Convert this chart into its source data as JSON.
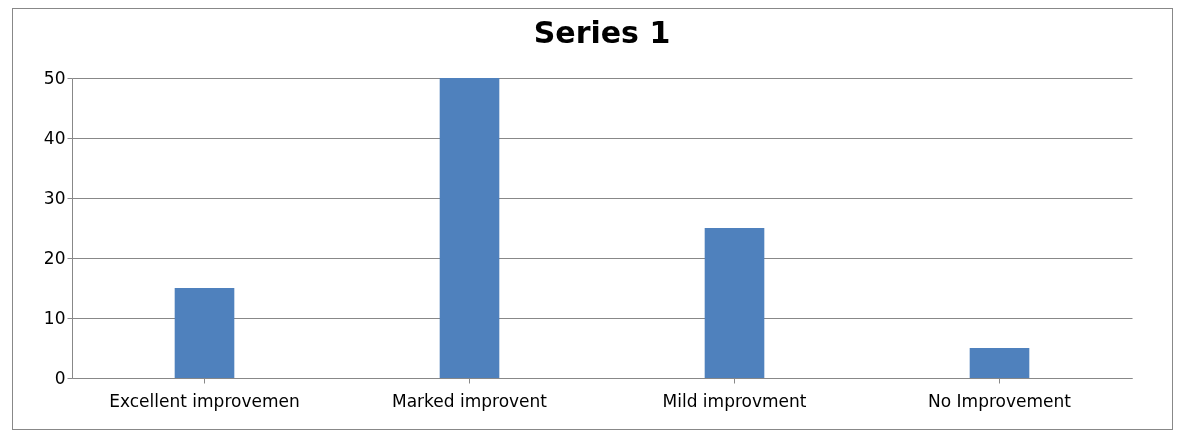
{
  "chart_data": {
    "type": "bar",
    "title": "Series 1",
    "categories": [
      "Excellent improvemen",
      "Marked improvent",
      "Mild improvment",
      "No Improvement"
    ],
    "values": [
      15,
      50,
      25,
      5
    ],
    "color": "#4f81bd",
    "ylim": [
      0,
      50
    ],
    "yticks": [
      0,
      10,
      20,
      30,
      40,
      50
    ],
    "grid": "y"
  }
}
